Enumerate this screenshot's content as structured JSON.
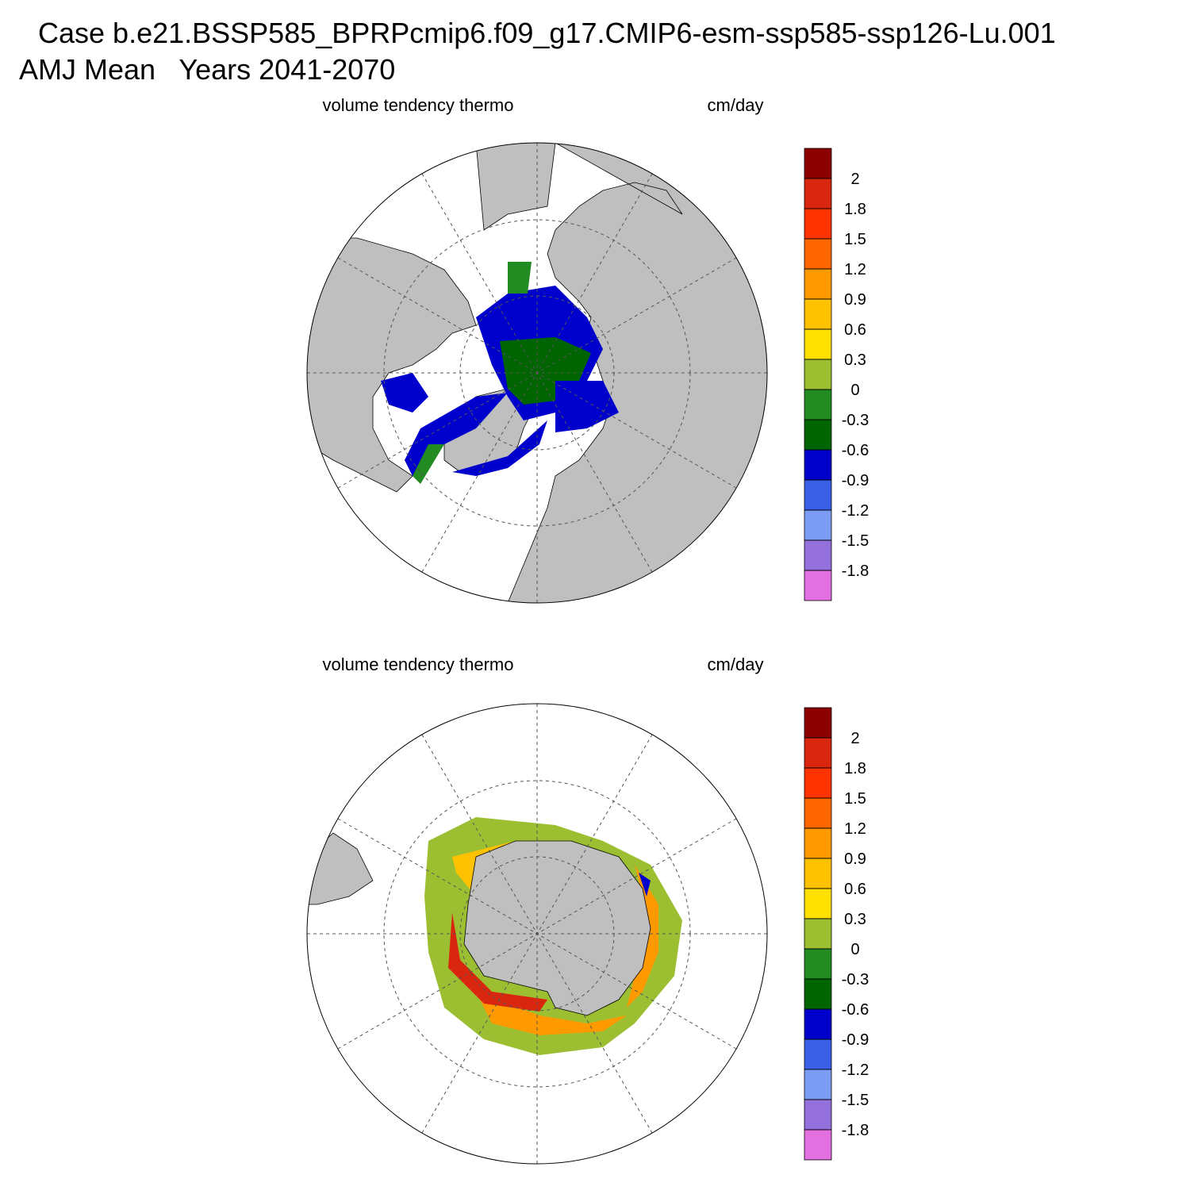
{
  "title": "Case b.e21.BSSP585_BPRPcmip6.f09_g17.CMIP6-esm-ssp585-ssp126-Lu.001",
  "subtitle": "AMJ Mean   Years 2041-2070",
  "panels": [
    {
      "left_label": "volume tendency thermo",
      "right_label": "cm/day",
      "colorbar": {
        "levels": [
          2,
          1.8,
          1.5,
          1.2,
          0.9,
          0.6,
          0.3,
          0,
          -0.3,
          -0.6,
          -0.9,
          -1.2,
          -1.5,
          -1.8
        ],
        "colors": [
          "#8b0000",
          "#d9260f",
          "#ff3300",
          "#ff6600",
          "#ff9900",
          "#ffc200",
          "#ffe000",
          "#9cbf32",
          "#228b22",
          "#006400",
          "#0000cd",
          "#3a60e8",
          "#7b9cf2",
          "#9370db",
          "#e370e0"
        ]
      }
    },
    {
      "left_label": "volume tendency thermo",
      "right_label": "cm/day",
      "colorbar": {
        "levels": [
          2,
          1.8,
          1.5,
          1.2,
          0.9,
          0.6,
          0.3,
          0,
          -0.3,
          -0.6,
          -0.9,
          -1.2,
          -1.5,
          -1.8
        ],
        "colors": [
          "#8b0000",
          "#d9260f",
          "#ff3300",
          "#ff6600",
          "#ff9900",
          "#ffc200",
          "#ffe000",
          "#9cbf32",
          "#228b22",
          "#006400",
          "#0000cd",
          "#3a60e8",
          "#7b9cf2",
          "#9370db",
          "#e370e0"
        ]
      }
    }
  ]
}
